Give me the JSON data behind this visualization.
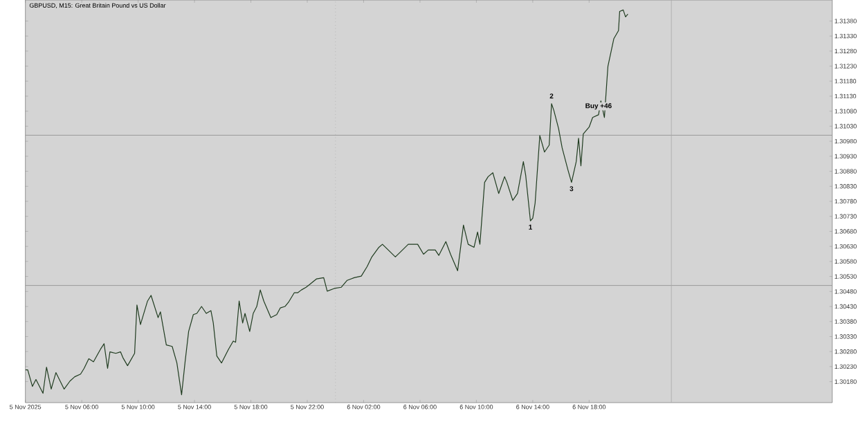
{
  "chart_data": {
    "type": "line",
    "title": "GBPUSD, M15: Great Britain Pound vs US Dollar",
    "xlim": [
      "2025-11-05T02:00",
      "2025-11-07T11:15"
    ],
    "ylim": [
      1.3011,
      1.3145
    ],
    "xticks": [
      {
        "value": "2025-11-05T02:00",
        "label": "5 Nov 2025"
      },
      {
        "value": "2025-11-05T06:00",
        "label": "5 Nov 06:00"
      },
      {
        "value": "2025-11-05T10:00",
        "label": "5 Nov 10:00"
      },
      {
        "value": "2025-11-05T14:00",
        "label": "5 Nov 14:00"
      },
      {
        "value": "2025-11-05T18:00",
        "label": "5 Nov 18:00"
      },
      {
        "value": "2025-11-05T22:00",
        "label": "5 Nov 22:00"
      },
      {
        "value": "2025-11-06T02:00",
        "label": "6 Nov 02:00"
      },
      {
        "value": "2025-11-06T06:00",
        "label": "6 Nov 06:00"
      },
      {
        "value": "2025-11-06T10:00",
        "label": "6 Nov 10:00"
      },
      {
        "value": "2025-11-06T14:00",
        "label": "6 Nov 14:00"
      },
      {
        "value": "2025-11-06T18:00",
        "label": "6 Nov 18:00"
      }
    ],
    "yticks": [
      {
        "value": 1.3138,
        "label": "1.31380"
      },
      {
        "value": 1.3133,
        "label": "1.31330"
      },
      {
        "value": 1.3128,
        "label": "1.31280"
      },
      {
        "value": 1.3123,
        "label": "1.31230"
      },
      {
        "value": 1.3118,
        "label": "1.31180"
      },
      {
        "value": 1.3113,
        "label": "1.31130"
      },
      {
        "value": 1.3108,
        "label": "1.31080"
      },
      {
        "value": 1.3103,
        "label": "1.31030"
      },
      {
        "value": 1.3098,
        "label": "1.30980"
      },
      {
        "value": 1.3093,
        "label": "1.30930"
      },
      {
        "value": 1.3088,
        "label": "1.30880"
      },
      {
        "value": 1.3083,
        "label": "1.30830"
      },
      {
        "value": 1.3078,
        "label": "1.30780"
      },
      {
        "value": 1.3073,
        "label": "1.30730"
      },
      {
        "value": 1.3068,
        "label": "1.30680"
      },
      {
        "value": 1.3063,
        "label": "1.30630"
      },
      {
        "value": 1.3058,
        "label": "1.30580"
      },
      {
        "value": 1.3053,
        "label": "1.30530"
      },
      {
        "value": 1.3048,
        "label": "1.30480"
      },
      {
        "value": 1.3043,
        "label": "1.30430"
      },
      {
        "value": 1.3038,
        "label": "1.30380"
      },
      {
        "value": 1.3033,
        "label": "1.30330"
      },
      {
        "value": 1.3028,
        "label": "1.30280"
      },
      {
        "value": 1.3023,
        "label": "1.30230"
      },
      {
        "value": 1.3018,
        "label": "1.30180"
      }
    ],
    "grid": false,
    "marker": "none",
    "line_style": "solid",
    "ref_lines": [
      {
        "axis": "y",
        "value": 1.31,
        "color": "#8c8c8c"
      },
      {
        "axis": "y",
        "value": 1.305,
        "color": "#8c8c8c"
      },
      {
        "axis": "x",
        "value": "2025-11-06T00:00",
        "color": "#a8a8a8",
        "line_style": "dotted"
      },
      {
        "axis": "x",
        "value": "2025-11-06T23:50",
        "color": "#a8a8a8"
      }
    ],
    "annotations": [
      {
        "text": "1",
        "x": "2025-11-06T13:50",
        "y": 1.30715
      },
      {
        "text": "2",
        "x": "2025-11-06T15:20",
        "y": 1.31105
      },
      {
        "text": "3",
        "x": "2025-11-06T16:45",
        "y": 1.30843
      },
      {
        "text": "Buy +46",
        "x": "2025-11-06T18:40",
        "y": 1.31068
      }
    ],
    "series": [
      {
        "color": "#1f3b1f",
        "x": [
          "2025-11-05T02:00",
          "2025-11-05T02:10",
          "2025-11-05T02:30",
          "2025-11-05T02:45",
          "2025-11-05T03:15",
          "2025-11-05T03:30",
          "2025-11-05T03:50",
          "2025-11-05T04:10",
          "2025-11-05T04:45",
          "2025-11-05T05:10",
          "2025-11-05T05:30",
          "2025-11-05T05:55",
          "2025-11-05T06:10",
          "2025-11-05T06:30",
          "2025-11-05T06:50",
          "2025-11-05T07:20",
          "2025-11-05T07:35",
          "2025-11-05T07:50",
          "2025-11-05T08:00",
          "2025-11-05T08:25",
          "2025-11-05T08:45",
          "2025-11-05T08:55",
          "2025-11-05T09:15",
          "2025-11-05T09:45",
          "2025-11-05T09:55",
          "2025-11-05T10:10",
          "2025-11-05T10:40",
          "2025-11-05T10:55",
          "2025-11-05T11:25",
          "2025-11-05T11:35",
          "2025-11-05T12:00",
          "2025-11-05T12:25",
          "2025-11-05T12:45",
          "2025-11-05T13:05",
          "2025-11-05T13:20",
          "2025-11-05T13:35",
          "2025-11-05T13:55",
          "2025-11-05T14:10",
          "2025-11-05T14:30",
          "2025-11-05T14:50",
          "2025-11-05T15:10",
          "2025-11-05T15:20",
          "2025-11-05T15:35",
          "2025-11-05T15:55",
          "2025-11-05T16:25",
          "2025-11-05T16:45",
          "2025-11-05T16:55",
          "2025-11-05T17:10",
          "2025-11-05T17:25",
          "2025-11-05T17:35",
          "2025-11-05T17:55",
          "2025-11-05T18:10",
          "2025-11-05T18:25",
          "2025-11-05T18:40",
          "2025-11-05T18:55",
          "2025-11-05T19:25",
          "2025-11-05T19:50",
          "2025-11-05T20:05",
          "2025-11-05T20:25",
          "2025-11-05T20:40",
          "2025-11-05T21:05",
          "2025-11-05T21:20",
          "2025-11-05T21:35",
          "2025-11-05T21:55",
          "2025-11-05T22:10",
          "2025-11-05T22:40",
          "2025-11-05T23:10",
          "2025-11-05T23:25",
          "2025-11-05T23:55",
          "2025-11-06T00:25",
          "2025-11-06T00:50",
          "2025-11-06T01:20",
          "2025-11-06T01:50",
          "2025-11-06T02:15",
          "2025-11-06T02:35",
          "2025-11-06T03:05",
          "2025-11-06T03:20",
          "2025-11-06T03:45",
          "2025-11-06T04:15",
          "2025-11-06T04:40",
          "2025-11-06T05:10",
          "2025-11-06T05:50",
          "2025-11-06T06:15",
          "2025-11-06T06:35",
          "2025-11-06T07:05",
          "2025-11-06T07:20",
          "2025-11-06T07:50",
          "2025-11-06T08:10",
          "2025-11-06T08:40",
          "2025-11-06T09:05",
          "2025-11-06T09:25",
          "2025-11-06T09:50",
          "2025-11-06T10:05",
          "2025-11-06T10:15",
          "2025-11-06T10:35",
          "2025-11-06T10:50",
          "2025-11-06T11:10",
          "2025-11-06T11:35",
          "2025-11-06T12:00",
          "2025-11-06T12:10",
          "2025-11-06T12:35",
          "2025-11-06T12:55",
          "2025-11-06T13:20",
          "2025-11-06T13:30",
          "2025-11-06T13:50",
          "2025-11-06T14:00",
          "2025-11-06T14:10",
          "2025-11-06T14:30",
          "2025-11-06T14:50",
          "2025-11-06T15:10",
          "2025-11-06T15:20",
          "2025-11-06T15:30",
          "2025-11-06T15:50",
          "2025-11-06T16:05",
          "2025-11-06T16:30",
          "2025-11-06T16:45",
          "2025-11-06T17:05",
          "2025-11-06T17:15",
          "2025-11-06T17:25",
          "2025-11-06T17:35",
          "2025-11-06T18:00",
          "2025-11-06T18:15",
          "2025-11-06T18:40",
          "2025-11-06T18:50",
          "2025-11-06T19:05",
          "2025-11-06T19:15",
          "2025-11-06T19:20",
          "2025-11-06T19:45",
          "2025-11-06T20:05",
          "2025-11-06T20:10",
          "2025-11-06T20:25",
          "2025-11-06T20:35",
          "2025-11-06T20:45"
        ],
        "values": [
          1.30219,
          1.30219,
          1.30164,
          1.30187,
          1.30141,
          1.30228,
          1.30155,
          1.3021,
          1.30155,
          1.30182,
          1.30196,
          1.30205,
          1.30224,
          1.30256,
          1.30246,
          1.30288,
          1.30306,
          1.30224,
          1.30279,
          1.30274,
          1.30279,
          1.3026,
          1.30233,
          1.30274,
          1.30435,
          1.3037,
          1.30448,
          1.30467,
          1.30393,
          1.30412,
          1.30302,
          1.30297,
          1.30242,
          1.30136,
          1.30246,
          1.30347,
          1.30403,
          1.30407,
          1.3043,
          1.30407,
          1.30416,
          1.30375,
          1.30265,
          1.30242,
          1.30288,
          1.30315,
          1.30311,
          1.30448,
          1.30375,
          1.30407,
          1.30347,
          1.30407,
          1.3043,
          1.30485,
          1.30448,
          1.30393,
          1.30403,
          1.30425,
          1.3043,
          1.30444,
          1.30476,
          1.30476,
          1.30485,
          1.30494,
          1.30503,
          1.30522,
          1.30526,
          1.30481,
          1.3049,
          1.30494,
          1.30517,
          1.30526,
          1.30531,
          1.30563,
          1.30595,
          1.30627,
          1.30637,
          1.30618,
          1.30595,
          1.30614,
          1.30637,
          1.30637,
          1.30604,
          1.30618,
          1.30618,
          1.306,
          1.30646,
          1.30604,
          1.30549,
          1.30701,
          1.30637,
          1.30627,
          1.30678,
          1.30637,
          1.30843,
          1.30862,
          1.30875,
          1.30806,
          1.30862,
          1.30843,
          1.30783,
          1.30806,
          1.30912,
          1.30866,
          1.30715,
          1.30724,
          1.30774,
          1.30999,
          1.30944,
          1.30967,
          1.31105,
          1.31082,
          1.31022,
          1.30958,
          1.30884,
          1.30843,
          1.30912,
          1.3099,
          1.30898,
          1.31004,
          1.31027,
          1.31059,
          1.31068,
          1.31114,
          1.31059,
          1.31174,
          1.31229,
          1.31321,
          1.31348,
          1.31412,
          1.31417,
          1.31394,
          1.31403
        ]
      }
    ]
  }
}
